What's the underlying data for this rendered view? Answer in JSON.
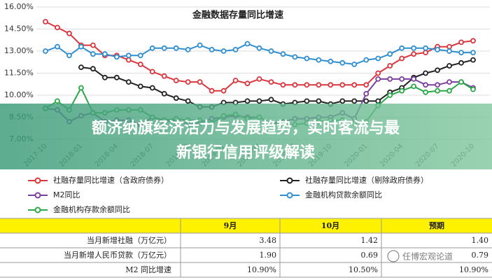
{
  "chart_data": {
    "type": "line",
    "title": "金融数据存量同比增速",
    "categories": [
      "2017-10",
      null,
      null,
      "2018-01",
      null,
      null,
      "2018-04",
      null,
      null,
      "2018-07",
      null,
      null,
      "2018-10",
      null,
      null,
      "2019-01",
      null,
      null,
      "2019-04",
      null,
      null,
      "2019-07",
      null,
      null,
      "2019-10",
      null,
      null,
      "2020-01",
      null,
      null,
      "2020-04",
      null,
      null,
      "2020-07",
      null,
      null,
      "2020-10"
    ],
    "series": [
      {
        "name": "社融存量同比增速（含政府债券）",
        "color": "#d9363e",
        "values": [
          15.0,
          14.6,
          14.2,
          13.4,
          13.4,
          12.7,
          12.7,
          12.4,
          12.1,
          11.6,
          11.3,
          11.0,
          10.9,
          10.9,
          10.3,
          10.3,
          11.0,
          10.8,
          11.1,
          10.9,
          10.7,
          10.7,
          10.7,
          10.7,
          10.7,
          10.7,
          10.7,
          10.7,
          11.5,
          12.0,
          12.5,
          12.8,
          12.9,
          13.3,
          13.3,
          13.6,
          13.7
        ]
      },
      {
        "name": "社融存量同比增速（剔除政府债券）",
        "color": "#222222",
        "values": [
          null,
          null,
          null,
          11.9,
          11.8,
          11.2,
          11.2,
          10.9,
          10.6,
          10.5,
          10.1,
          9.8,
          9.6,
          9.2,
          9.2,
          9.5,
          9.5,
          9.6,
          9.6,
          9.7,
          9.4,
          9.5,
          9.6,
          9.6,
          9.4,
          9.6,
          9.6,
          9.6,
          9.6,
          10.2,
          10.5,
          11.2,
          11.5,
          11.7,
          12.0,
          12.2,
          12.4
        ]
      },
      {
        "name": "M2同比",
        "color": "#7b3fa0",
        "values": [
          9.1,
          9.0,
          8.2,
          8.6,
          8.8,
          8.2,
          8.3,
          8.3,
          8.0,
          8.5,
          8.2,
          8.3,
          8.0,
          8.1,
          8.4,
          8.5,
          8.6,
          8.5,
          8.5,
          8.1,
          8.2,
          8.4,
          8.4,
          8.5,
          8.5,
          8.8,
          8.4,
          10.1,
          11.1,
          11.1,
          11.1,
          11.1,
          10.7,
          10.7,
          10.9,
          10.9,
          10.5
        ]
      },
      {
        "name": "金融机构贷款余额同比",
        "color": "#2f8fd0",
        "values": [
          13.0,
          13.3,
          12.7,
          13.3,
          12.8,
          12.8,
          12.6,
          12.7,
          12.7,
          13.2,
          13.2,
          13.2,
          13.1,
          13.4,
          13.1,
          13.0,
          13.1,
          13.5,
          13.2,
          13.0,
          12.8,
          12.6,
          12.5,
          12.4,
          12.3,
          12.2,
          12.1,
          12.4,
          12.5,
          12.8,
          13.2,
          13.2,
          13.2,
          13.1,
          13.0,
          12.9,
          12.9
        ]
      },
      {
        "name": "金融机构存款余额同比",
        "color": "#2aa84a",
        "values": [
          9.1,
          9.6,
          9.0,
          10.5,
          8.8,
          8.8,
          9.0,
          9.0,
          9.0,
          8.5,
          8.3,
          8.4,
          8.3,
          8.3,
          8.1,
          8.6,
          8.7,
          8.4,
          8.5,
          8.1,
          8.0,
          8.0,
          8.1,
          8.2,
          8.3,
          8.3,
          8.1,
          8.2,
          9.3,
          10.0,
          10.3,
          10.6,
          10.2,
          10.3,
          10.3,
          10.9,
          10.4
        ]
      }
    ],
    "ylim": [
      7,
      16
    ],
    "yticks": [
      {
        "value": 7,
        "label": "7.00%"
      },
      {
        "value": 8.5,
        "label": "8.50%"
      },
      {
        "value": 10,
        "label": "10.00%"
      },
      {
        "value": 11.5,
        "label": "11.50%"
      },
      {
        "value": 13,
        "label": "13.00%"
      },
      {
        "value": 14.5,
        "label": "14.50%"
      },
      {
        "value": 16,
        "label": "16.00%"
      }
    ],
    "grid": true
  },
  "banner": {
    "lines": [
      "额济纳旗经济活力与发展趋势，实时客流与最",
      "新银行信用评级解读"
    ]
  },
  "table": {
    "header": [
      "9月",
      "10月",
      "预期"
    ],
    "rows": [
      [
        "当月新增社融（万亿元）",
        "3.48",
        "1.42",
        "1.40"
      ],
      [
        "当月新增人民币贷款（万亿元）",
        "1.90",
        "0.69",
        "0.79"
      ],
      [
        "M2 同比增速",
        "10.90%",
        "10.50%",
        "10.90%"
      ]
    ]
  },
  "watermark": "任博宏观论道"
}
